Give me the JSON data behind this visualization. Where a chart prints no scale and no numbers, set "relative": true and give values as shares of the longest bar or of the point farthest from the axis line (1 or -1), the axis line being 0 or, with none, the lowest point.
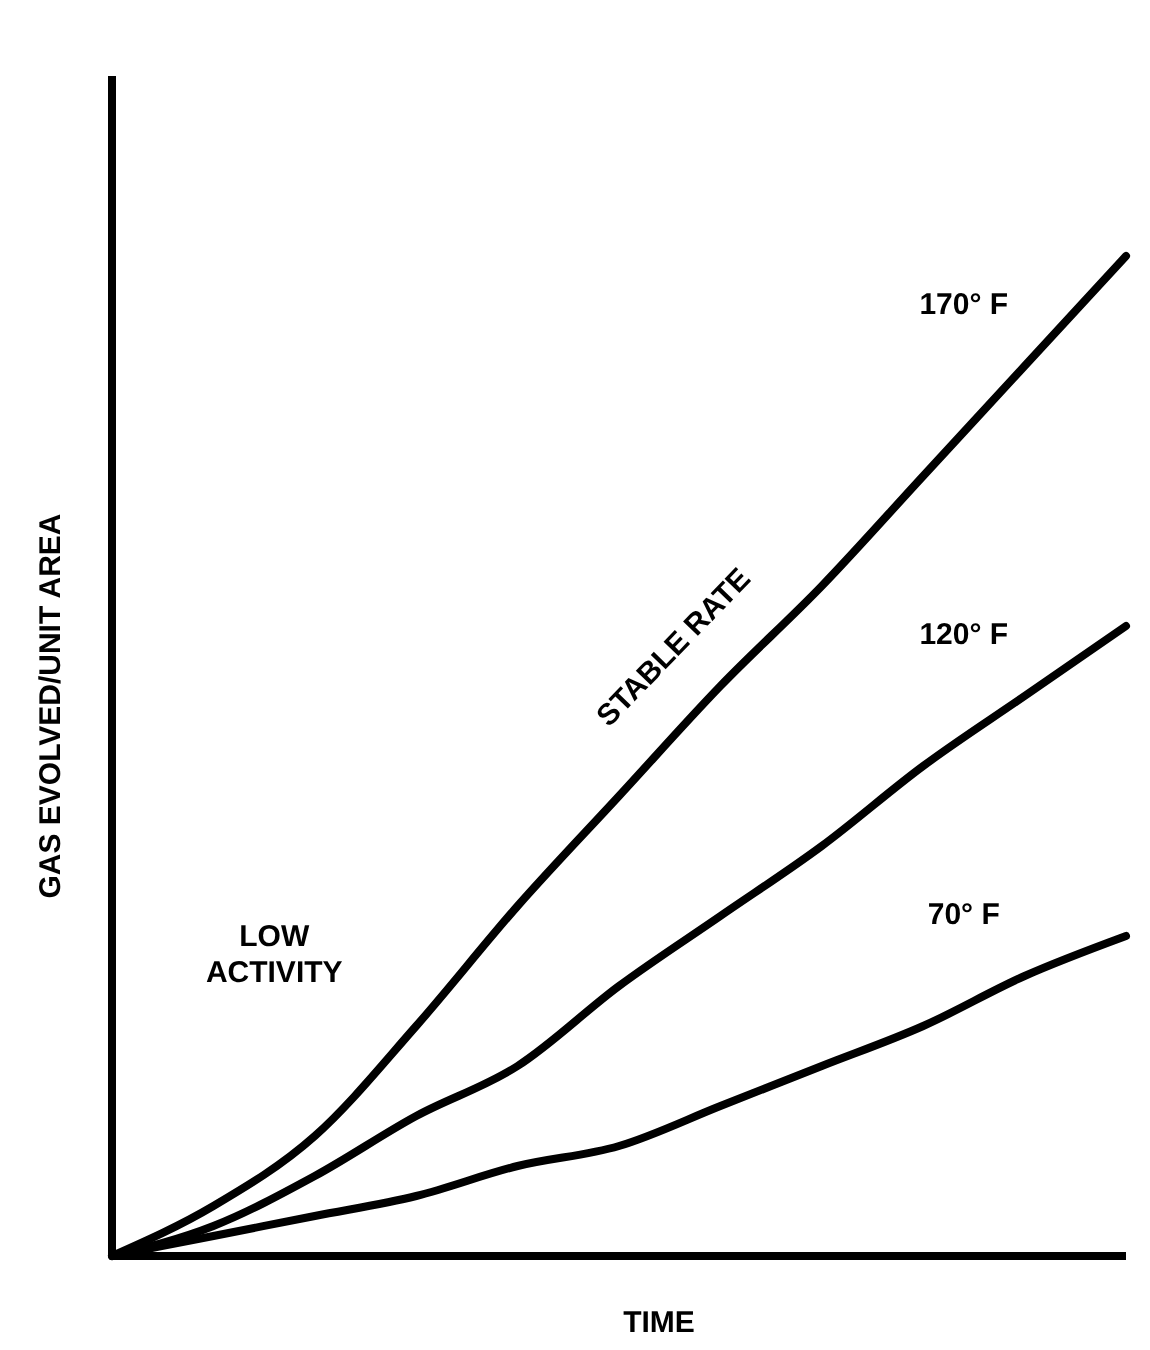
{
  "chart_data": {
    "type": "line",
    "relative": true,
    "xlabel": "TIME",
    "ylabel": "GAS EVOLVED/UNIT AREA",
    "categories": [
      null,
      null,
      null,
      null,
      null,
      null,
      null,
      null,
      null,
      null,
      null
    ],
    "series": [
      {
        "name": "170° F",
        "color": "#000000",
        "values": [
          0,
          0.05,
          0.12,
          0.23,
          0.35,
          0.46,
          0.57,
          0.67,
          0.78,
          0.89,
          1
        ]
      },
      {
        "name": "120° F",
        "color": "#000000",
        "values": [
          0,
          0.03,
          0.08,
          0.14,
          0.19,
          0.27,
          0.34,
          0.41,
          0.49,
          0.56,
          0.63
        ]
      },
      {
        "name": "70° F",
        "color": "#000000",
        "values": [
          0,
          0.02,
          0.04,
          0.06,
          0.09,
          0.11,
          0.15,
          0.19,
          0.23,
          0.28,
          0.32
        ]
      }
    ],
    "annotations": [
      "STABLE RATE",
      "LOW ACTIVITY"
    ]
  }
}
